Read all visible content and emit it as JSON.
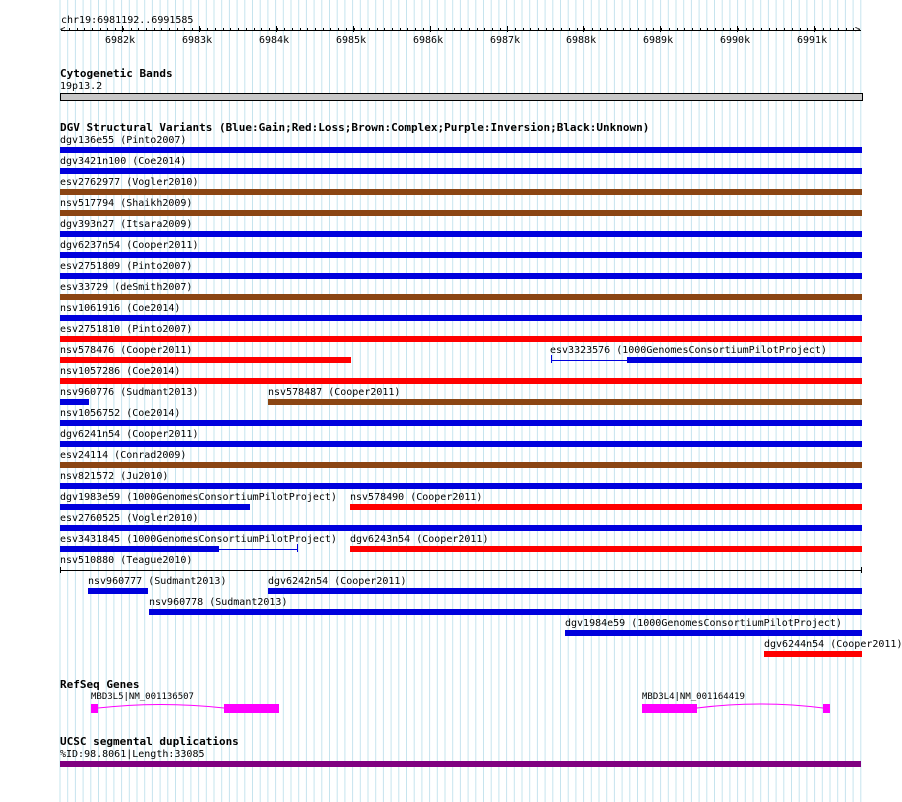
{
  "ruler": {
    "position_label": "chr19:6981192..6991585",
    "ticks": [
      "6982k",
      "6983k",
      "6984k",
      "6985k",
      "6986k",
      "6987k",
      "6988k",
      "6989k",
      "6990k",
      "6991k"
    ]
  },
  "cytoband": {
    "title": "Cytogenetic Bands",
    "band": "19p13.2"
  },
  "dgv": {
    "title": "DGV Structural Variants (Blue:Gain;Red:Loss;Brown:Complex;Purple:Inversion;Black:Unknown)",
    "colors": {
      "gain": "#0000dd",
      "loss": "#ff0000",
      "complex": "#8b4513",
      "unknown": "#000000"
    },
    "features": [
      {
        "label": "dgv136e55 (Pinto2007)",
        "type": "gain"
      },
      {
        "label": "dgv3421n100 (Coe2014)",
        "type": "gain"
      },
      {
        "label": "esv2762977 (Vogler2010)",
        "type": "complex"
      },
      {
        "label": "nsv517794 (Shaikh2009)",
        "type": "complex"
      },
      {
        "label": "dgv393n27 (Itsara2009)",
        "type": "gain"
      },
      {
        "label": "dgv6237n54 (Cooper2011)",
        "type": "gain"
      },
      {
        "label": "esv2751809 (Pinto2007)",
        "type": "gain"
      },
      {
        "label": "esv33729 (deSmith2007)",
        "type": "complex"
      },
      {
        "label": "nsv1061916 (Coe2014)",
        "type": "gain"
      },
      {
        "label": "esv2751810 (Pinto2007)",
        "type": "loss"
      },
      {
        "label": "nsv578476 (Cooper2011)",
        "type": "loss"
      },
      {
        "label": "esv3323576 (1000GenomesConsortiumPilotProject)",
        "type": "gain"
      },
      {
        "label": "nsv1057286 (Coe2014)",
        "type": "loss"
      },
      {
        "label": "nsv960776 (Sudmant2013)",
        "type": "gain"
      },
      {
        "label": "nsv578487 (Cooper2011)",
        "type": "complex"
      },
      {
        "label": "nsv1056752 (Coe2014)",
        "type": "gain"
      },
      {
        "label": "dgv6241n54 (Cooper2011)",
        "type": "gain"
      },
      {
        "label": "esv24114 (Conrad2009)",
        "type": "complex"
      },
      {
        "label": "nsv821572 (Ju2010)",
        "type": "gain"
      },
      {
        "label": "dgv1983e59 (1000GenomesConsortiumPilotProject)",
        "type": "gain"
      },
      {
        "label": "nsv578490 (Cooper2011)",
        "type": "loss"
      },
      {
        "label": "esv2760525 (Vogler2010)",
        "type": "gain"
      },
      {
        "label": "esv3431845 (1000GenomesConsortiumPilotProject)",
        "type": "gain"
      },
      {
        "label": "dgv6243n54 (Cooper2011)",
        "type": "loss"
      },
      {
        "label": "nsv510880 (Teague2010)",
        "type": "unknown"
      },
      {
        "label": "nsv960777 (Sudmant2013)",
        "type": "gain"
      },
      {
        "label": "dgv6242n54 (Cooper2011)",
        "type": "gain"
      },
      {
        "label": "nsv960778 (Sudmant2013)",
        "type": "gain"
      },
      {
        "label": "dgv1984e59 (1000GenomesConsortiumPilotProject)",
        "type": "gain"
      },
      {
        "label": "dgv6244n54 (Cooper2011)",
        "type": "loss"
      }
    ]
  },
  "refseq": {
    "title": "RefSeq Genes",
    "color": "#ff00ff",
    "genes": [
      {
        "label": "MBD3L5|NM_001136507"
      },
      {
        "label": "MBD3L4|NM_001164419"
      }
    ]
  },
  "segdup": {
    "title": "UCSC segmental duplications",
    "label": "%ID:98.8061|Length:33085",
    "color": "#800080"
  }
}
